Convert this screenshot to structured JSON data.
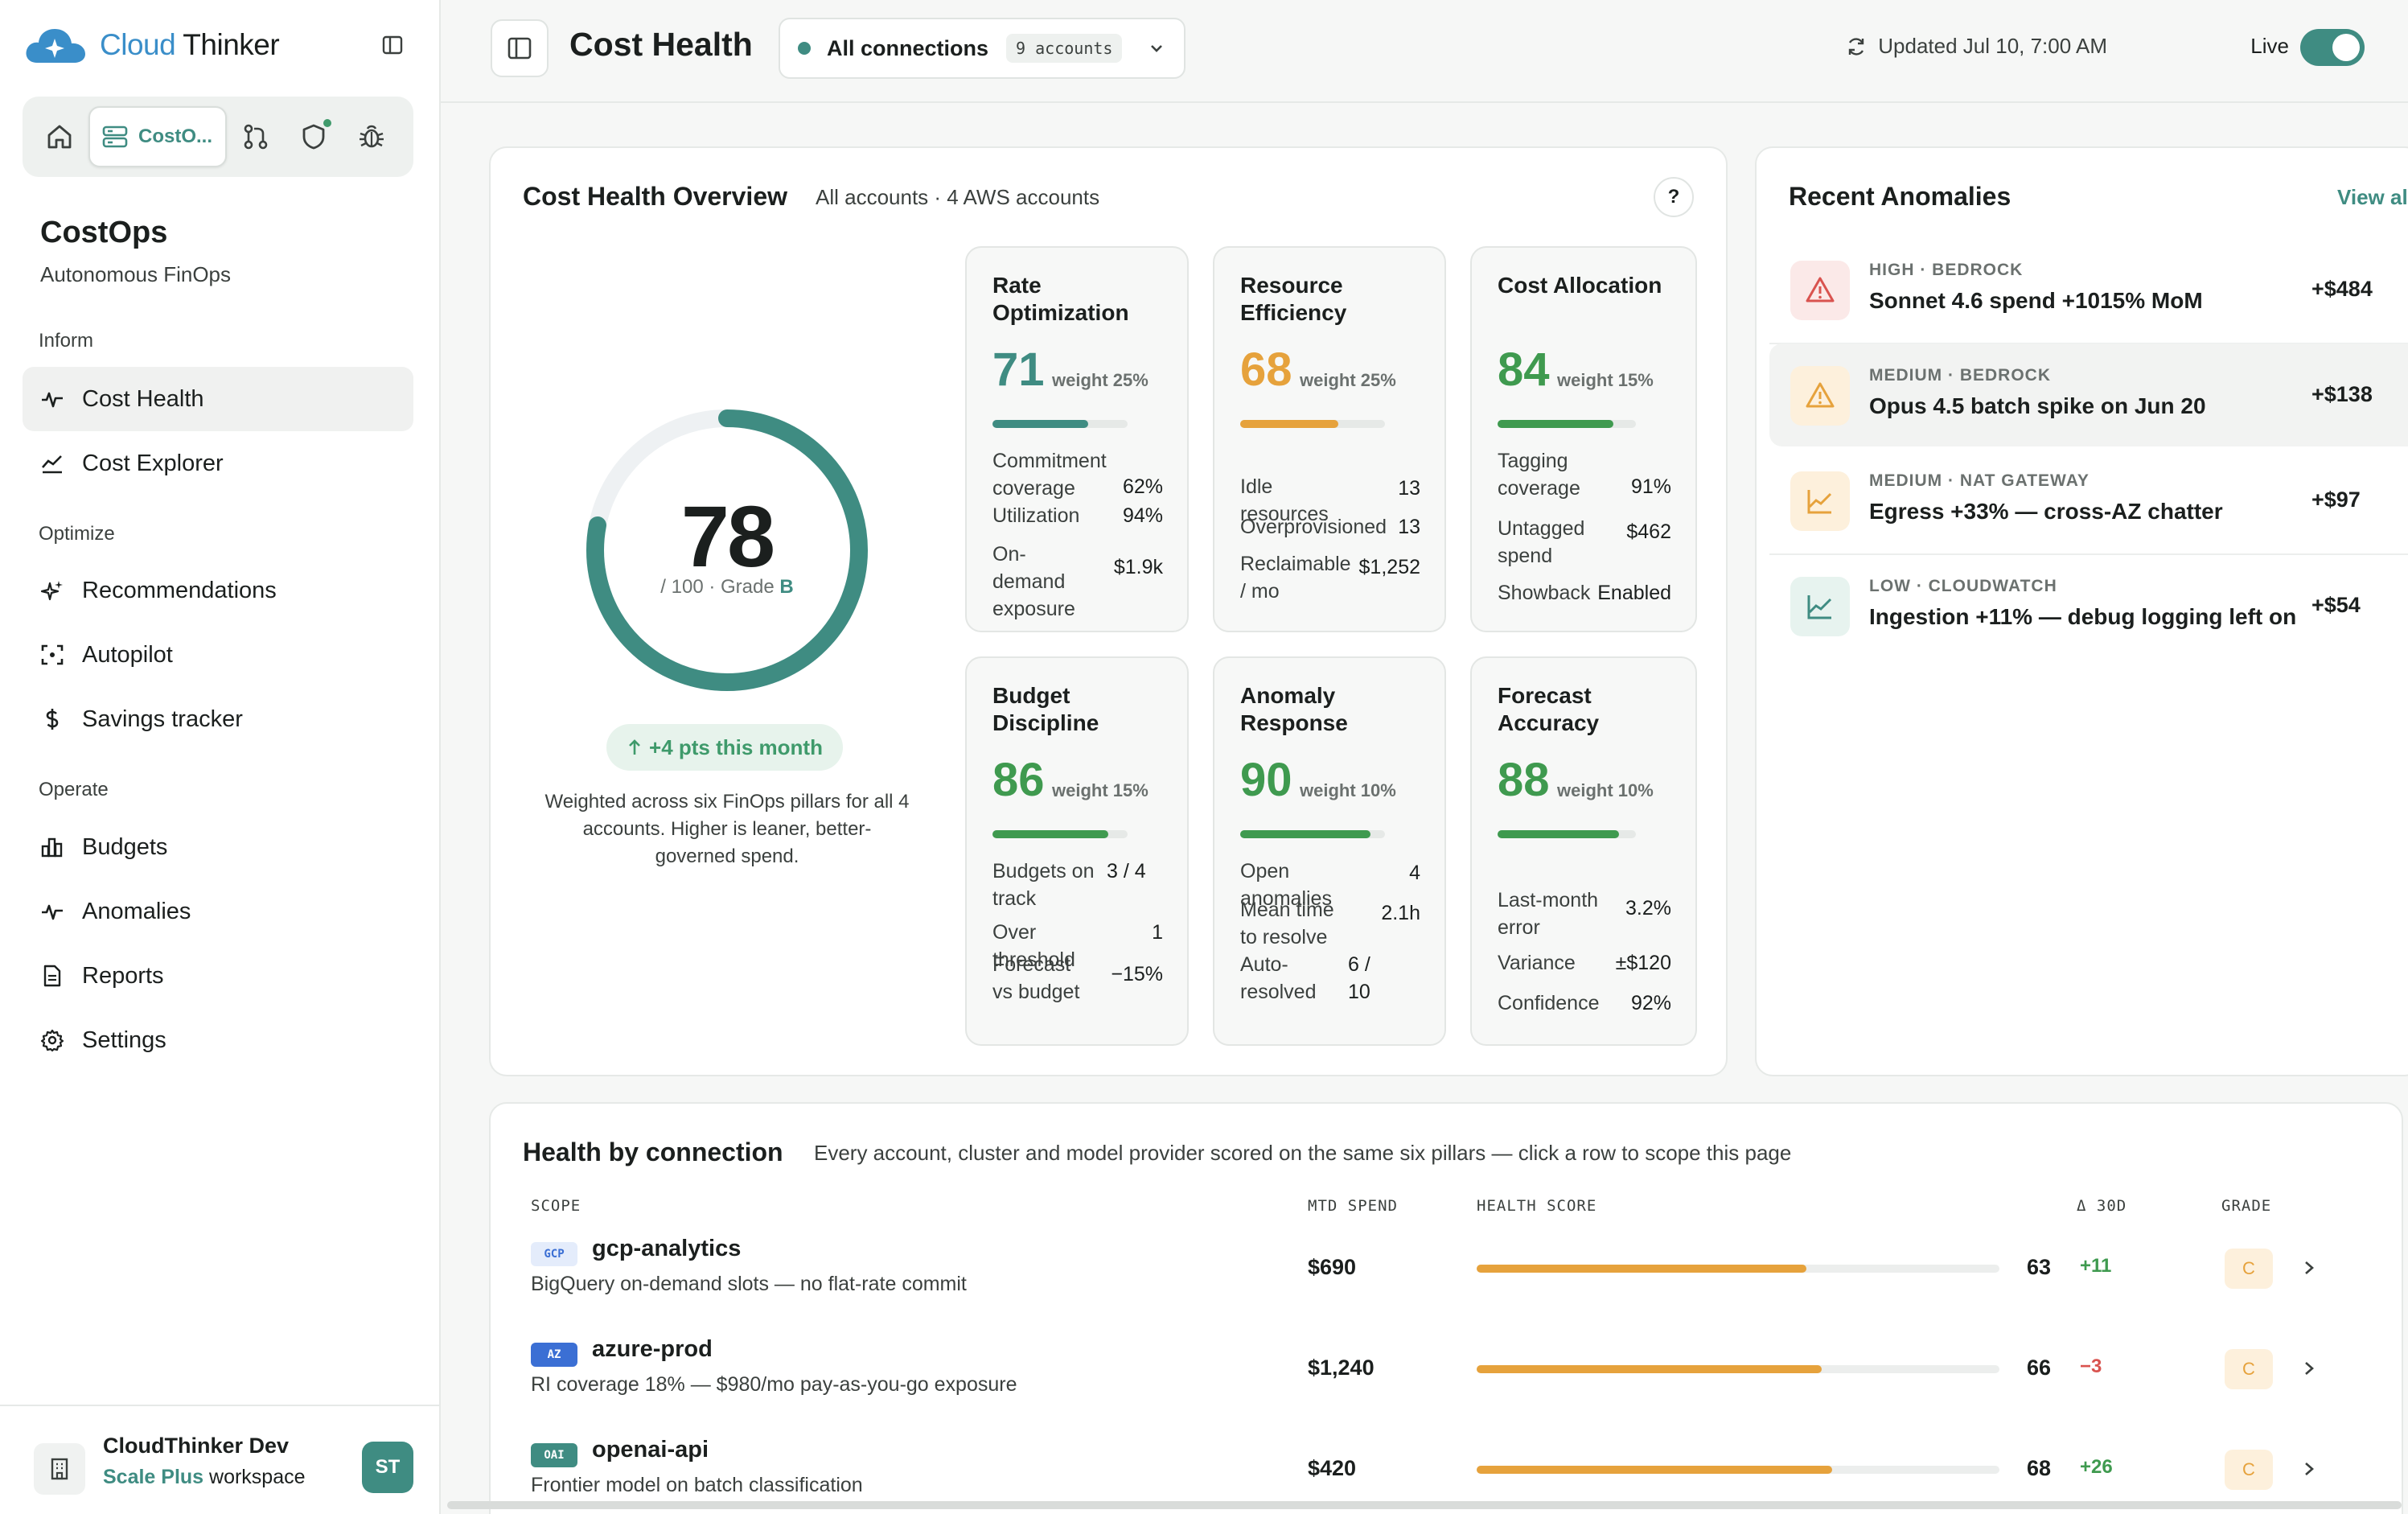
{
  "brand": {
    "logo_word1": "Cloud",
    "logo_word2": " Thinker",
    "color": "#3a8ec9"
  },
  "app_switch": {
    "active_label": "CostO...",
    "items": [
      "home-icon",
      "server-icon",
      "git-pull-icon",
      "shield-icon",
      "bug-icon"
    ]
  },
  "sidebar": {
    "title": "CostOps",
    "subtitle": "Autonomous FinOps",
    "sections": {
      "inform": "Inform",
      "optimize": "Optimize",
      "operate": "Operate"
    },
    "items": [
      {
        "label": "Cost Health",
        "icon": "pulse-icon",
        "active": true
      },
      {
        "label": "Cost Explorer",
        "icon": "area-chart-icon"
      },
      {
        "label": "Recommendations",
        "icon": "sparkles-icon"
      },
      {
        "label": "Autopilot",
        "icon": "focus-icon"
      },
      {
        "label": "Savings tracker",
        "icon": "dollar-icon"
      },
      {
        "label": "Budgets",
        "icon": "bar-chart-icon"
      },
      {
        "label": "Anomalies",
        "icon": "activity-icon"
      },
      {
        "label": "Reports",
        "icon": "document-icon"
      },
      {
        "label": "Settings",
        "icon": "gear-icon"
      }
    ],
    "workspace": {
      "name": "CloudThinker Dev",
      "plan": "Scale Plus",
      "plan_suffix": " workspace",
      "avatar": "ST"
    }
  },
  "topbar": {
    "title": "Cost Health",
    "connection": "All connections",
    "accounts_badge": "9 accounts",
    "updated": "Updated Jul 10, 7:00 AM",
    "live_label": "Live",
    "live_on": true
  },
  "overview": {
    "title": "Cost Health Overview",
    "subtitle": "All accounts · 4 AWS accounts",
    "help": "?",
    "score": "78",
    "score_max_text": "/ 100 · Grade ",
    "grade": "B",
    "score_fraction": 0.78,
    "delta": "+4 pts this month",
    "note": "Weighted across six FinOps pillars for all 4 accounts. Higher is leaner, better-governed spend.",
    "accent": "#3f8c82"
  },
  "pillars": [
    {
      "title": "Rate Optimization",
      "score": "71",
      "weight": "weight 25%",
      "color": "#3f8c82",
      "fraction": 0.71,
      "metrics": [
        {
          "label": "Commitment coverage",
          "value": "62%"
        },
        {
          "label": "Utilization",
          "value": "94%"
        },
        {
          "label": "On-demand exposure",
          "value": "$1.9k"
        }
      ]
    },
    {
      "title": "Resource Efficiency",
      "score": "68",
      "weight": "weight 25%",
      "color": "#e6a23c",
      "fraction": 0.68,
      "metrics": [
        {
          "label": "Idle resources",
          "value": "13"
        },
        {
          "label": "Overprovisioned",
          "value": "13"
        },
        {
          "label": "Reclaimable / mo",
          "value": "$1,252"
        }
      ]
    },
    {
      "title": "Cost Allocation",
      "score": "84",
      "weight": "weight 15%",
      "color": "#3f9a4f",
      "fraction": 0.84,
      "metrics": [
        {
          "label": "Tagging coverage",
          "value": "91%"
        },
        {
          "label": "Untagged spend",
          "value": "$462"
        },
        {
          "label": "Showback",
          "value": "Enabled"
        }
      ]
    },
    {
      "title": "Budget Discipline",
      "score": "86",
      "weight": "weight 15%",
      "color": "#3f9a4f",
      "fraction": 0.86,
      "metrics": [
        {
          "label": "Budgets on track",
          "value": "3 / 4"
        },
        {
          "label": "Over threshold",
          "value": "1"
        },
        {
          "label": "Forecast vs budget",
          "value": "−15%"
        }
      ]
    },
    {
      "title": "Anomaly Response",
      "score": "90",
      "weight": "weight 10%",
      "color": "#3f9a4f",
      "fraction": 0.9,
      "metrics": [
        {
          "label": "Open anomalies",
          "value": "4"
        },
        {
          "label": "Mean time to resolve",
          "value": "2.1h"
        },
        {
          "label": "Auto-resolved",
          "value": "6 / 10"
        }
      ]
    },
    {
      "title": "Forecast Accuracy",
      "score": "88",
      "weight": "weight 10%",
      "color": "#3f9a4f",
      "fraction": 0.88,
      "metrics": [
        {
          "label": "Last-month error",
          "value": "3.2%"
        },
        {
          "label": "Variance",
          "value": "±$120"
        },
        {
          "label": "Confidence",
          "value": "92%"
        }
      ]
    }
  ],
  "anomalies": {
    "title": "Recent Anomalies",
    "view_all": "View all",
    "items": [
      {
        "tag": "HIGH · BEDROCK",
        "text": "Sonnet 4.6 spend +1015% MoM",
        "amount": "+$484",
        "icon": "alert-triangle-icon",
        "tone": "#d9534f",
        "bg": "#fbe9e8"
      },
      {
        "tag": "MEDIUM · BEDROCK",
        "text": "Opus 4.5 batch spike on Jun 20",
        "amount": "+$138",
        "icon": "alert-triangle-icon",
        "tone": "#e6a23c",
        "bg": "#fdf0dc"
      },
      {
        "tag": "MEDIUM · NAT GATEWAY",
        "text": "Egress +33% — cross-AZ chatter",
        "amount": "+$97",
        "icon": "line-chart-icon",
        "tone": "#e6a23c",
        "bg": "#fdf0dc"
      },
      {
        "tag": "LOW · CLOUDWATCH",
        "text": "Ingestion +11% — debug logging left on",
        "amount": "+$54",
        "icon": "line-chart-icon",
        "tone": "#3f8c82",
        "bg": "#e7f3ef"
      }
    ]
  },
  "health_table": {
    "title": "Health by connection",
    "subtitle": "Every account, cluster and model provider scored on the same six pillars — click a row to scope this page",
    "headers": {
      "scope": "SCOPE",
      "spend": "MTD SPEND",
      "score": "HEALTH SCORE",
      "delta": "Δ 30D",
      "grade": "GRADE"
    },
    "rows": [
      {
        "tag": "GCP",
        "tag_bg": "#e4ecfb",
        "tag_fg": "#3b6fd4",
        "name": "gcp-analytics",
        "desc": "BigQuery on-demand slots — no flat-rate commit",
        "spend": "$690",
        "score": "63",
        "fraction": 0.63,
        "delta": "+11",
        "delta_color": "#3f9a4f",
        "grade": "C"
      },
      {
        "tag": "AZ",
        "tag_bg": "#3b6fd4",
        "tag_fg": "#ffffff",
        "name": "azure-prod",
        "desc": "RI coverage 18% — $980/mo pay-as-you-go exposure",
        "spend": "$1,240",
        "score": "66",
        "fraction": 0.66,
        "delta": "−3",
        "delta_color": "#d9534f",
        "grade": "C"
      },
      {
        "tag": "OAI",
        "tag_bg": "#3f8c82",
        "tag_fg": "#ffffff",
        "name": "openai-api",
        "desc": "Frontier model on batch classification",
        "spend": "$420",
        "score": "68",
        "fraction": 0.68,
        "delta": "+26",
        "delta_color": "#3f9a4f",
        "grade": "C"
      }
    ]
  }
}
